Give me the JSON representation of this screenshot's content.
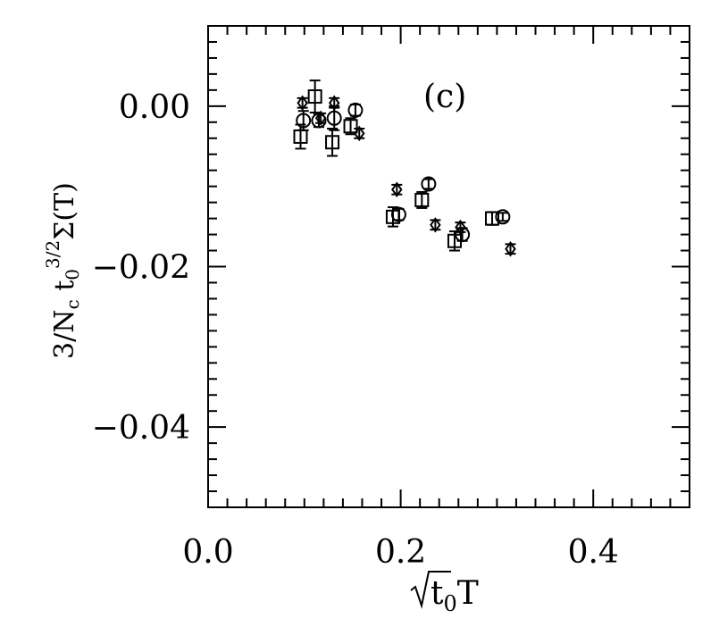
{
  "chart_data": {
    "type": "scatter",
    "title": "",
    "panel_label": "(c)",
    "xlabel": "√t0T",
    "ylabel": "3/Nct0^3/2Σ(T)",
    "xlim": [
      0.0,
      0.5
    ],
    "ylim": [
      -0.05,
      0.01
    ],
    "x_ticks": [
      "0.0",
      "0.2",
      "0.4"
    ],
    "y_ticks": [
      "0.00",
      "−0.02",
      "−0.04"
    ],
    "grid": false,
    "series": [
      {
        "marker": "square",
        "points": [
          {
            "x": 0.096,
            "y": -0.0038,
            "err": 0.0015
          },
          {
            "x": 0.111,
            "y": 0.0012,
            "err": 0.002
          },
          {
            "x": 0.129,
            "y": -0.0045,
            "err": 0.0017
          },
          {
            "x": 0.148,
            "y": -0.0025,
            "err": 0.001
          },
          {
            "x": 0.192,
            "y": -0.0138,
            "err": 0.0012
          },
          {
            "x": 0.222,
            "y": -0.0117,
            "err": 0.001
          },
          {
            "x": 0.256,
            "y": -0.0168,
            "err": 0.0012
          },
          {
            "x": 0.295,
            "y": -0.014,
            "err": 0.0008
          }
        ]
      },
      {
        "marker": "circle",
        "points": [
          {
            "x": 0.099,
            "y": -0.0018,
            "err": 0.0012
          },
          {
            "x": 0.115,
            "y": -0.0018,
            "err": 0.0008
          },
          {
            "x": 0.131,
            "y": -0.0015,
            "err": 0.0015
          },
          {
            "x": 0.153,
            "y": -0.0005,
            "err": 0.0007
          },
          {
            "x": 0.198,
            "y": -0.0135,
            "err": 0.0007
          },
          {
            "x": 0.229,
            "y": -0.0097,
            "err": 0.0006
          },
          {
            "x": 0.264,
            "y": -0.016,
            "err": 0.0008
          },
          {
            "x": 0.306,
            "y": -0.0138,
            "err": 0.0005
          }
        ]
      },
      {
        "marker": "diamond",
        "points": [
          {
            "x": 0.098,
            "y": 0.0004,
            "err": 0.0006
          },
          {
            "x": 0.117,
            "y": -0.0015,
            "err": 0.0006
          },
          {
            "x": 0.131,
            "y": 0.0004,
            "err": 0.0006
          },
          {
            "x": 0.157,
            "y": -0.0034,
            "err": 0.0006
          },
          {
            "x": 0.196,
            "y": -0.0104,
            "err": 0.0006
          },
          {
            "x": 0.236,
            "y": -0.0148,
            "err": 0.0006
          },
          {
            "x": 0.262,
            "y": -0.0151,
            "err": 0.0006
          },
          {
            "x": 0.314,
            "y": -0.0178,
            "err": 0.0006
          }
        ]
      }
    ]
  }
}
